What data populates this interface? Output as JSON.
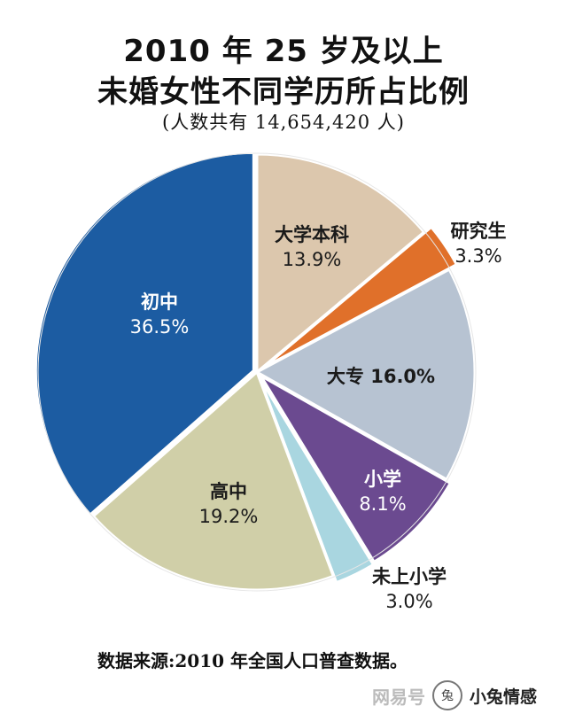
{
  "title_line1": "2010 年 25 岁及以上",
  "title_line2": "未婚女性不同学历所占比例",
  "subtitle": "(人数共有 14,654,420 人)",
  "source": "数据来源:2010 年全国人口普查数据。",
  "watermark": {
    "text": "网易号",
    "brand": "小兔情感",
    "logo_glyph": "兔"
  },
  "chart_data": {
    "type": "pie",
    "title": "2010 年 25 岁及以上 未婚女性不同学历所占比例",
    "subtitle": "(人数共有 14,654,420 人)",
    "slices": [
      {
        "label": "大学本科",
        "value_label": "13.9%",
        "value": 13.9,
        "color": "#dcc7ad",
        "text_color": "#1a1a1a"
      },
      {
        "label": "研究生",
        "value_label": "3.3%",
        "value": 3.3,
        "color": "#e0702a",
        "text_color": "#1a1a1a"
      },
      {
        "label": "大专",
        "value_label": "16.0%",
        "value": 16.0,
        "color": "#b7c3d2",
        "text_color": "#1a1a1a"
      },
      {
        "label": "小学",
        "value_label": "8.1%",
        "value": 8.1,
        "color": "#6b4a90",
        "text_color": "#ffffff"
      },
      {
        "label": "未上小学",
        "value_label": "3.0%",
        "value": 3.0,
        "color": "#a9d6e0",
        "text_color": "#1a1a1a"
      },
      {
        "label": "高中",
        "value_label": "19.2%",
        "value": 19.2,
        "color": "#d0cfa8",
        "text_color": "#1a1a1a"
      },
      {
        "label": "初中",
        "value_label": "36.5%",
        "value": 36.5,
        "color": "#1c5ca2",
        "text_color": "#ffffff"
      }
    ]
  }
}
